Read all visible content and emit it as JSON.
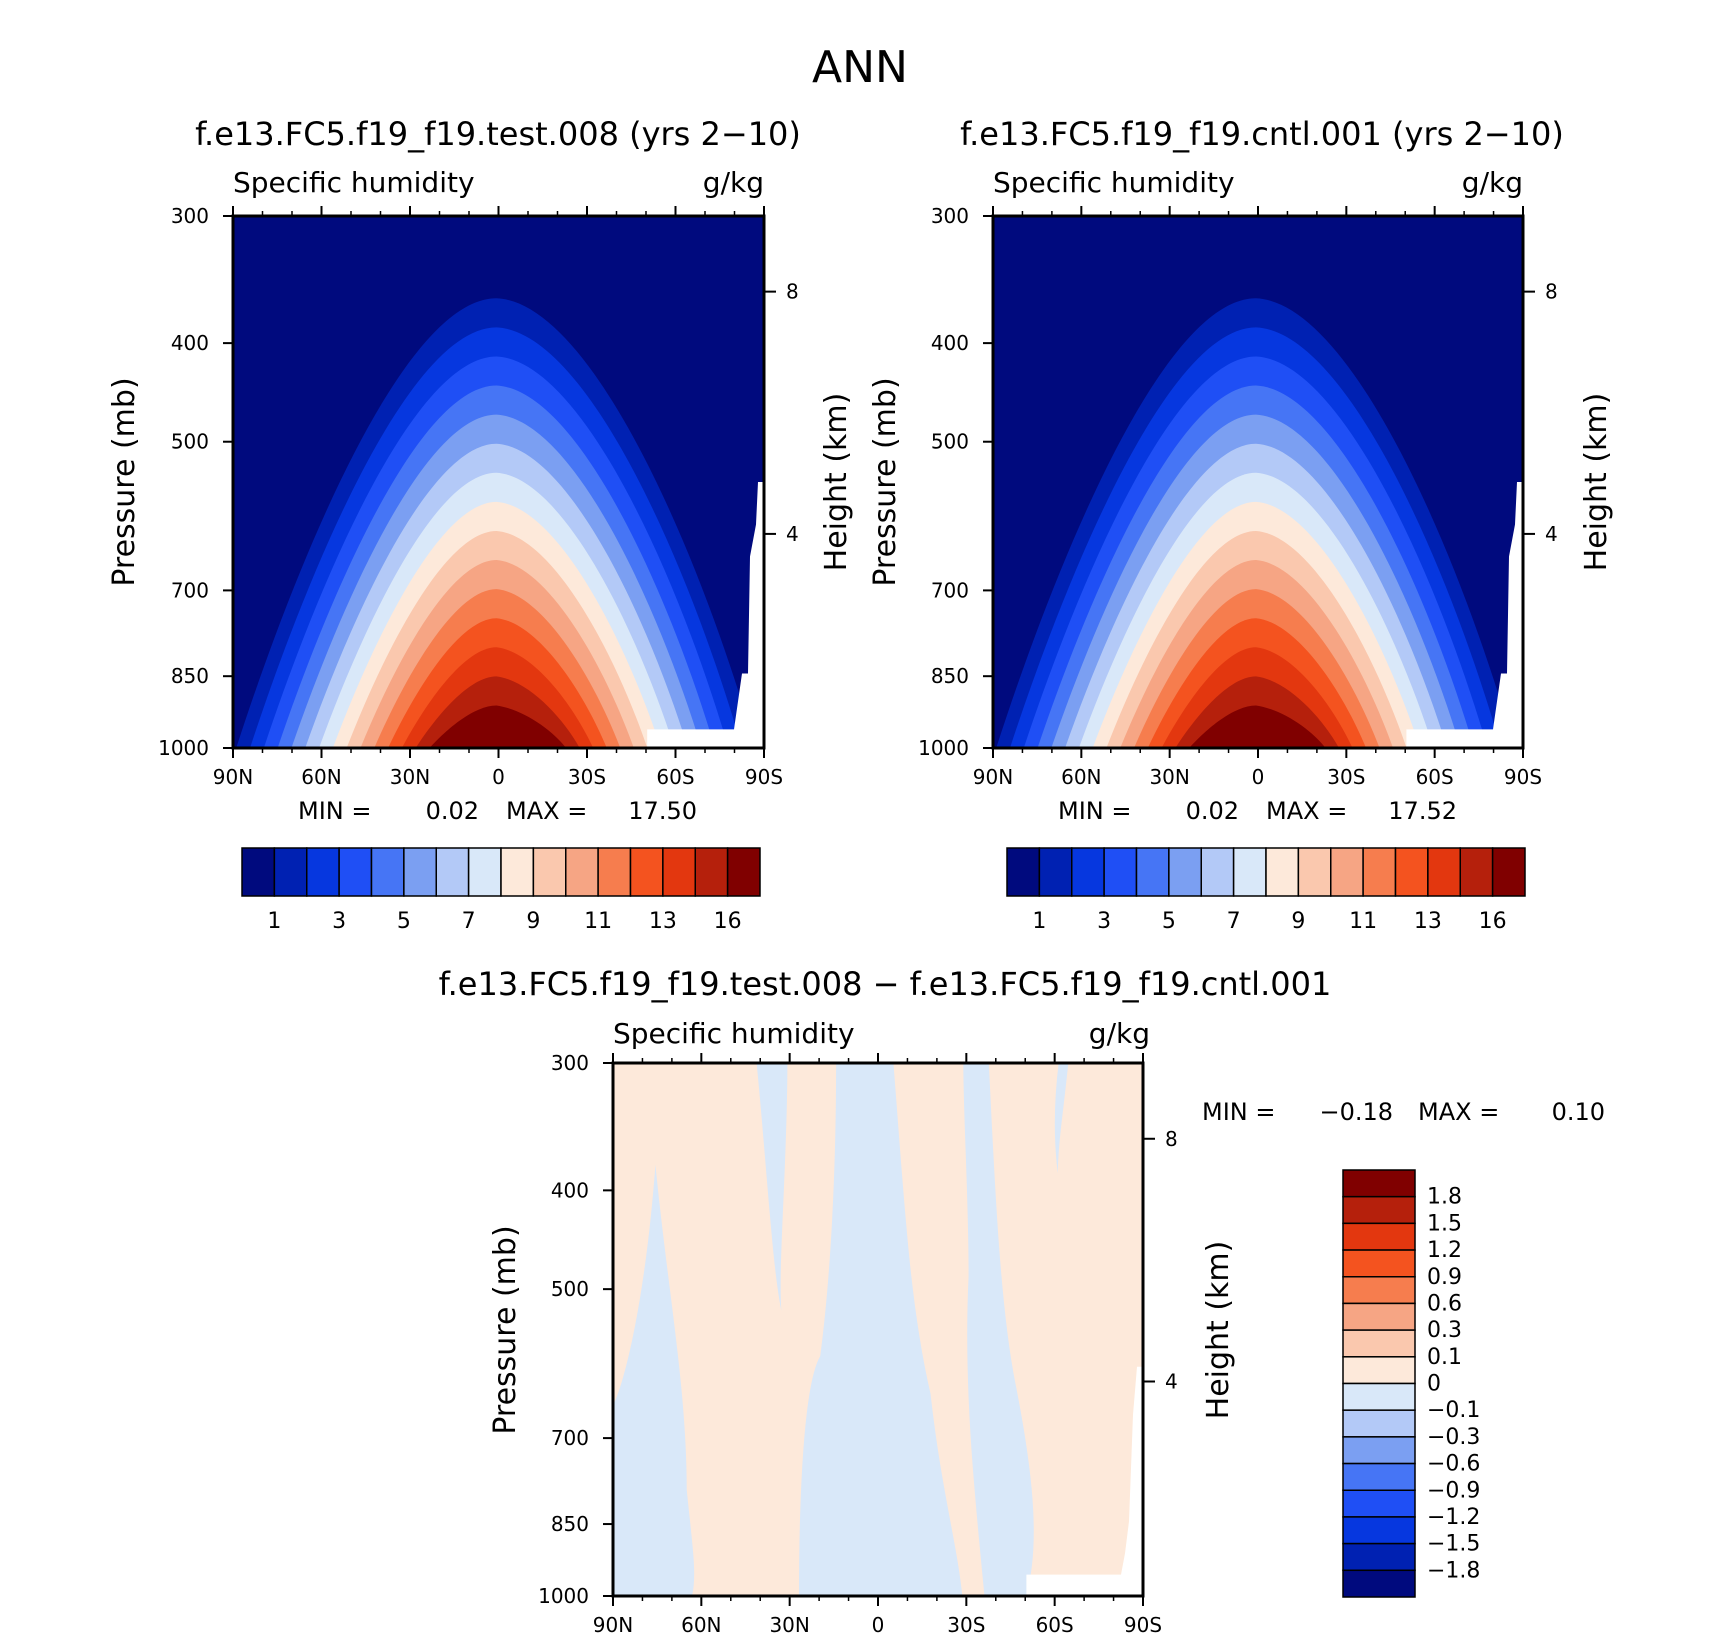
{
  "figure": {
    "title": "ANN"
  },
  "chart_data": [
    {
      "type": "contour",
      "panel": "test",
      "title": "f.e13.FC5.f19_f19.test.008 (yrs 2−10)",
      "variable": "Specific humidity",
      "units": "g/kg",
      "xlabel": "",
      "ylabel": "Pressure (mb)",
      "ylabel_right": "Height (km)",
      "x_ticks": [
        "90N",
        "60N",
        "30N",
        "0",
        "30S",
        "60S",
        "90S"
      ],
      "y_ticks": [
        "300",
        "400",
        "500",
        "700",
        "850",
        "1000"
      ],
      "y_values": [
        300,
        400,
        500,
        700,
        850,
        1000
      ],
      "y_ticks_right": [
        "8",
        "4"
      ],
      "ylim": [
        1000,
        300
      ],
      "min_label": "MIN =",
      "min_value": "0.02",
      "max_label": "MAX =",
      "max_value": "17.50",
      "levels": [
        1,
        2,
        3,
        4,
        5,
        6,
        7,
        8,
        9,
        10,
        11,
        12,
        13,
        14,
        16
      ],
      "colorbar_labels": [
        "1",
        "3",
        "5",
        "7",
        "9",
        "11",
        "13",
        "16"
      ]
    },
    {
      "type": "contour",
      "panel": "control",
      "title": "f.e13.FC5.f19_f19.cntl.001 (yrs 2−10)",
      "variable": "Specific humidity",
      "units": "g/kg",
      "xlabel": "",
      "ylabel": "Pressure (mb)",
      "ylabel_right": "Height (km)",
      "x_ticks": [
        "90N",
        "60N",
        "30N",
        "0",
        "30S",
        "60S",
        "90S"
      ],
      "y_ticks": [
        "300",
        "400",
        "500",
        "700",
        "850",
        "1000"
      ],
      "y_values": [
        300,
        400,
        500,
        700,
        850,
        1000
      ],
      "y_ticks_right": [
        "8",
        "4"
      ],
      "ylim": [
        1000,
        300
      ],
      "min_label": "MIN =",
      "min_value": "0.02",
      "max_label": "MAX =",
      "max_value": "17.52",
      "levels": [
        1,
        2,
        3,
        4,
        5,
        6,
        7,
        8,
        9,
        10,
        11,
        12,
        13,
        14,
        16
      ],
      "colorbar_labels": [
        "1",
        "3",
        "5",
        "7",
        "9",
        "11",
        "13",
        "16"
      ]
    },
    {
      "type": "contour",
      "panel": "difference",
      "title": "f.e13.FC5.f19_f19.test.008 − f.e13.FC5.f19_f19.cntl.001",
      "variable": "Specific humidity",
      "units": "g/kg",
      "xlabel": "",
      "ylabel": "Pressure (mb)",
      "ylabel_right": "Height (km)",
      "x_ticks": [
        "90N",
        "60N",
        "30N",
        "0",
        "30S",
        "60S",
        "90S"
      ],
      "y_ticks": [
        "300",
        "400",
        "500",
        "700",
        "850",
        "1000"
      ],
      "y_values": [
        300,
        400,
        500,
        700,
        850,
        1000
      ],
      "y_ticks_right": [
        "8",
        "4"
      ],
      "ylim": [
        1000,
        300
      ],
      "min_label": "MIN =",
      "min_value": "−0.18",
      "max_label": "MAX =",
      "max_value": "0.10",
      "levels": [
        "1.8",
        "1.5",
        "1.2",
        "0.9",
        "0.6",
        "0.3",
        "0.1",
        "0",
        "−0.1",
        "−0.3",
        "−0.6",
        "−0.9",
        "−1.2",
        "−1.5",
        "−1.8"
      ]
    }
  ],
  "colors": {
    "abs_palette": [
      "#000a7e",
      "#0021b2",
      "#0637df",
      "#1f4ff5",
      "#4675f5",
      "#7b9ff2",
      "#b3c9f7",
      "#d9e8f9",
      "#fde9da",
      "#fac8ae",
      "#f6a584",
      "#f67d4e",
      "#f4531f",
      "#e3370f",
      "#b5200c",
      "#800000"
    ],
    "diff_palette": [
      "#800000",
      "#b5200c",
      "#e3370f",
      "#f4531f",
      "#f67d4e",
      "#f6a584",
      "#fac8ae",
      "#fde9da",
      "#d9e8f9",
      "#b3c9f7",
      "#7b9ff2",
      "#4675f5",
      "#1f4ff5",
      "#0637df",
      "#0021b2",
      "#000a7e"
    ]
  }
}
